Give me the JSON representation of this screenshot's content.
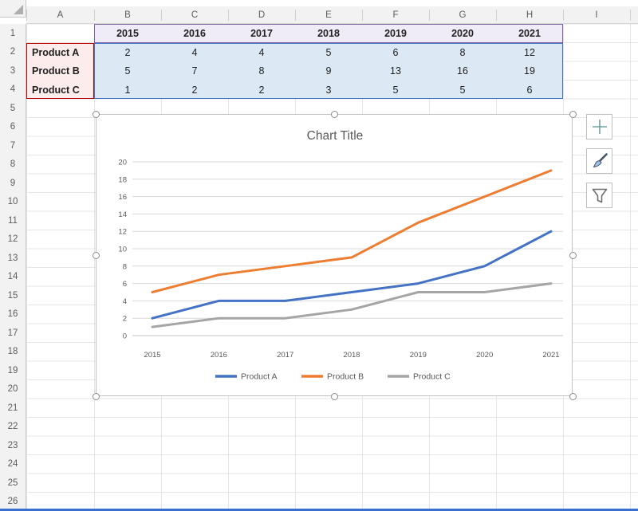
{
  "app": {
    "name": "excel-worksheet-with-line-chart"
  },
  "sheet": {
    "columns": [
      "A",
      "B",
      "C",
      "D",
      "E",
      "F",
      "G",
      "H",
      "I"
    ],
    "row_count": 26,
    "table": {
      "years": [
        "2015",
        "2016",
        "2017",
        "2018",
        "2019",
        "2020",
        "2021"
      ],
      "products": [
        {
          "name": "Product A",
          "values": [
            "2",
            "4",
            "4",
            "5",
            "6",
            "8",
            "12"
          ]
        },
        {
          "name": "Product B",
          "values": [
            "5",
            "7",
            "8",
            "9",
            "13",
            "16",
            "19"
          ]
        },
        {
          "name": "Product C",
          "values": [
            "1",
            "2",
            "2",
            "3",
            "5",
            "5",
            "6"
          ]
        }
      ]
    },
    "range_highlights": {
      "categories": {
        "fill": "#EFEBF7",
        "border": "#8064A2"
      },
      "series_names": {
        "fill": "#FDECEC",
        "border": "#C00000"
      },
      "values": {
        "fill": "#DCE8F4",
        "border": "#4472C4"
      }
    }
  },
  "chart_data": {
    "type": "line",
    "title": "Chart Title",
    "categories": [
      "2015",
      "2016",
      "2017",
      "2018",
      "2019",
      "2020",
      "2021"
    ],
    "series": [
      {
        "name": "Product A",
        "color": "#4472C4",
        "values": [
          2,
          4,
          4,
          5,
          6,
          8,
          12
        ]
      },
      {
        "name": "Product B",
        "color": "#ED7D31",
        "values": [
          5,
          7,
          8,
          9,
          13,
          16,
          19
        ]
      },
      {
        "name": "Product C",
        "color": "#A5A5A5",
        "values": [
          1,
          2,
          2,
          3,
          5,
          5,
          6
        ]
      }
    ],
    "ylim": [
      0,
      20
    ],
    "ytick_step": 2,
    "xlabel": "",
    "ylabel": "",
    "legend_position": "bottom",
    "grid": true,
    "text_color": "#595959",
    "gridline_color": "#D9D9D9"
  },
  "chart_tools": [
    {
      "icon": "plus-icon",
      "label": "chart-elements"
    },
    {
      "icon": "brush-icon",
      "label": "chart-styles"
    },
    {
      "icon": "funnel-icon",
      "label": "chart-filters"
    }
  ]
}
